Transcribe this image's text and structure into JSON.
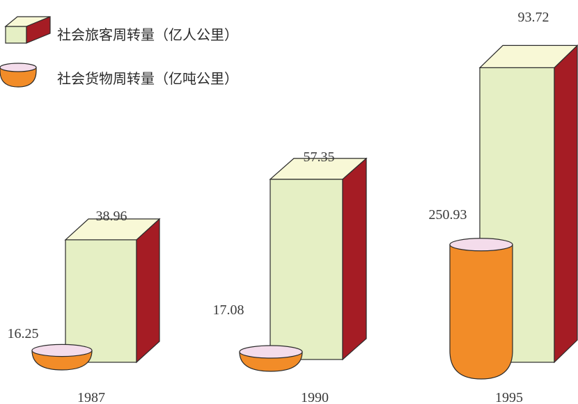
{
  "chart_data": {
    "type": "bar",
    "categories": [
      "1987",
      "1990",
      "1995"
    ],
    "series": [
      {
        "name": "社会旅客周转量（亿人公里）",
        "values": [
          38.96,
          57.35,
          93.72
        ]
      },
      {
        "name": "社会货物周转量（亿吨公里）",
        "values": [
          16.25,
          17.08,
          250.93
        ]
      }
    ],
    "value_labels": {
      "passenger": [
        "38.96",
        "57.35",
        "93.72"
      ],
      "freight": [
        "16.25",
        "17.08",
        "250.93"
      ]
    },
    "legend_position": "top-left",
    "grid": false,
    "axes_shown": false
  },
  "colors": {
    "box_front": "#E5EFC4",
    "box_top": "#F8F8D6",
    "box_side": "#A51C24",
    "box_outline": "#2b2b2b",
    "cup_body": "#F28C28",
    "cup_top": "#F4DCEB",
    "text": "#3a3a3a"
  }
}
